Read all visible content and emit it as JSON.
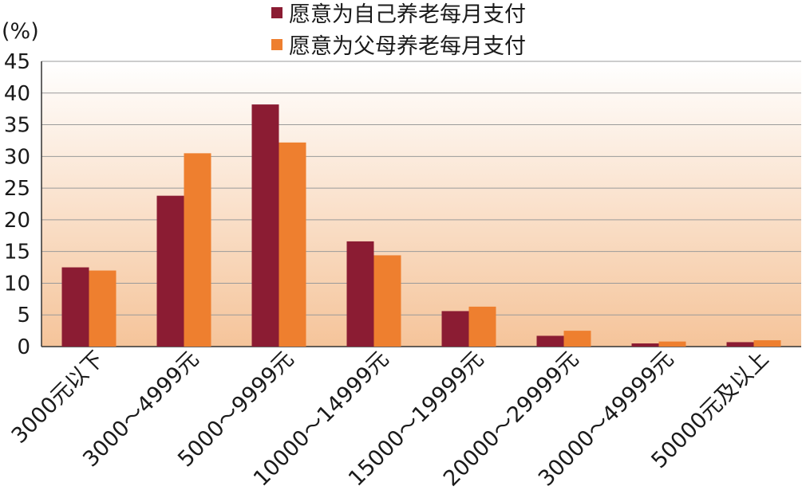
{
  "chart_data": {
    "type": "bar",
    "unit_label": "(%)",
    "categories": [
      "3000元以下",
      "3000～4999元",
      "5000～9999元",
      "10000～14999元",
      "15000～19999元",
      "20000～29999元",
      "30000～49999元",
      "50000元及以上"
    ],
    "series": [
      {
        "name": "愿意为自己养老每月支付",
        "color": "#8b1c33",
        "values": [
          12.5,
          23.8,
          38.2,
          16.6,
          5.6,
          1.7,
          0.5,
          0.7
        ]
      },
      {
        "name": "愿意为父母养老每月支付",
        "color": "#ee7f2f",
        "values": [
          12.0,
          30.5,
          32.2,
          14.4,
          6.3,
          2.5,
          0.8,
          1.0
        ]
      }
    ],
    "yticks": [
      0,
      5,
      10,
      15,
      20,
      25,
      30,
      35,
      40,
      45
    ],
    "ylim": [
      0,
      45
    ],
    "grid": true,
    "legend_position": "top-right",
    "background_gradient": [
      "#ffffff",
      "#f5c49a"
    ]
  }
}
